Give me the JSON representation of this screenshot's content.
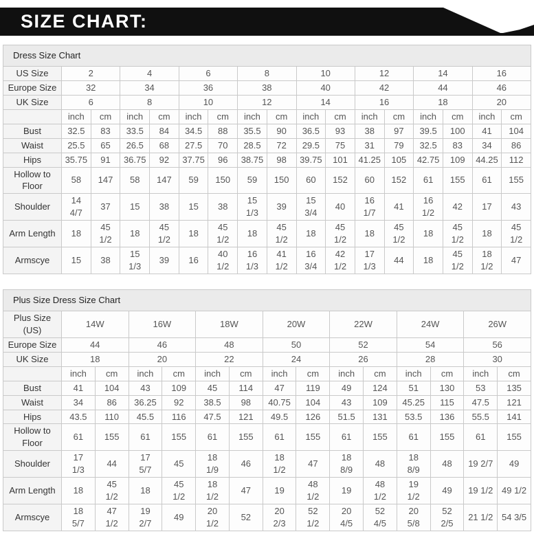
{
  "banner": {
    "title": "SIZE CHART:"
  },
  "colors": {
    "banner_bg": "#101010",
    "banner_text": "#ffffff",
    "table_border": "#c9c9c9",
    "caption_bg": "#ebebeb",
    "label_bg": "#f4f4f4"
  },
  "tables": [
    {
      "name": "dress-size-chart",
      "caption": "Dress Size Chart",
      "units": [
        "inch",
        "cm"
      ],
      "size_rows": [
        {
          "label": "US Size",
          "values": [
            "2",
            "4",
            "6",
            "8",
            "10",
            "12",
            "14",
            "16"
          ]
        },
        {
          "label": "Europe Size",
          "values": [
            "32",
            "34",
            "36",
            "38",
            "40",
            "42",
            "44",
            "46"
          ]
        },
        {
          "label": "UK Size",
          "values": [
            "6",
            "8",
            "10",
            "12",
            "14",
            "16",
            "18",
            "20"
          ]
        }
      ],
      "measure_rows": [
        {
          "label": "Bust",
          "values": [
            "32.5",
            "83",
            "33.5",
            "84",
            "34.5",
            "88",
            "35.5",
            "90",
            "36.5",
            "93",
            "38",
            "97",
            "39.5",
            "100",
            "41",
            "104"
          ]
        },
        {
          "label": "Waist",
          "values": [
            "25.5",
            "65",
            "26.5",
            "68",
            "27.5",
            "70",
            "28.5",
            "72",
            "29.5",
            "75",
            "31",
            "79",
            "32.5",
            "83",
            "34",
            "86"
          ]
        },
        {
          "label": "Hips",
          "values": [
            "35.75",
            "91",
            "36.75",
            "92",
            "37.75",
            "96",
            "38.75",
            "98",
            "39.75",
            "101",
            "41.25",
            "105",
            "42.75",
            "109",
            "44.25",
            "112"
          ]
        },
        {
          "label": "Hollow to Floor",
          "values": [
            "58",
            "147",
            "58",
            "147",
            "59",
            "150",
            "59",
            "150",
            "60",
            "152",
            "60",
            "152",
            "61",
            "155",
            "61",
            "155"
          ]
        },
        {
          "label": "Shoulder",
          "values": [
            "14\n4/7",
            "37",
            "15",
            "38",
            "15",
            "38",
            "15\n1/3",
            "39",
            "15\n3/4",
            "40",
            "16\n1/7",
            "41",
            "16\n1/2",
            "42",
            "17",
            "43"
          ]
        },
        {
          "label": "Arm Length",
          "values": [
            "18",
            "45\n1/2",
            "18",
            "45\n1/2",
            "18",
            "45\n1/2",
            "18",
            "45\n1/2",
            "18",
            "45\n1/2",
            "18",
            "45\n1/2",
            "18",
            "45\n1/2",
            "18",
            "45\n1/2"
          ]
        },
        {
          "label": "Armscye",
          "values": [
            "15",
            "38",
            "15\n1/3",
            "39",
            "16",
            "40\n1/2",
            "16\n1/3",
            "41\n1/2",
            "16\n3/4",
            "42\n1/2",
            "17\n1/3",
            "44",
            "18",
            "45\n1/2",
            "18\n1/2",
            "47"
          ]
        }
      ]
    },
    {
      "name": "plus-size-dress-size-chart",
      "caption": "Plus Size Dress Size Chart",
      "units": [
        "inch",
        "cm"
      ],
      "size_rows": [
        {
          "label": "Plus Size (US)",
          "values": [
            "14W",
            "16W",
            "18W",
            "20W",
            "22W",
            "24W",
            "26W"
          ]
        },
        {
          "label": "Europe Size",
          "values": [
            "44",
            "46",
            "48",
            "50",
            "52",
            "54",
            "56"
          ]
        },
        {
          "label": "UK Size",
          "values": [
            "18",
            "20",
            "22",
            "24",
            "26",
            "28",
            "30"
          ]
        }
      ],
      "measure_rows": [
        {
          "label": "Bust",
          "values": [
            "41",
            "104",
            "43",
            "109",
            "45",
            "114",
            "47",
            "119",
            "49",
            "124",
            "51",
            "130",
            "53",
            "135"
          ]
        },
        {
          "label": "Waist",
          "values": [
            "34",
            "86",
            "36.25",
            "92",
            "38.5",
            "98",
            "40.75",
            "104",
            "43",
            "109",
            "45.25",
            "115",
            "47.5",
            "121"
          ]
        },
        {
          "label": "Hips",
          "values": [
            "43.5",
            "110",
            "45.5",
            "116",
            "47.5",
            "121",
            "49.5",
            "126",
            "51.5",
            "131",
            "53.5",
            "136",
            "55.5",
            "141"
          ]
        },
        {
          "label": "Hollow to Floor",
          "values": [
            "61",
            "155",
            "61",
            "155",
            "61",
            "155",
            "61",
            "155",
            "61",
            "155",
            "61",
            "155",
            "61",
            "155"
          ]
        },
        {
          "label": "Shoulder",
          "values": [
            "17\n1/3",
            "44",
            "17\n5/7",
            "45",
            "18\n1/9",
            "46",
            "18\n1/2",
            "47",
            "18\n8/9",
            "48",
            "18\n8/9",
            "48",
            "19 2/7",
            "49"
          ]
        },
        {
          "label": "Arm Length",
          "values": [
            "18",
            "45\n1/2",
            "18",
            "45\n1/2",
            "18\n1/2",
            "47",
            "19",
            "48\n1/2",
            "19",
            "48\n1/2",
            "19\n1/2",
            "49",
            "19 1/2",
            "49 1/2"
          ]
        },
        {
          "label": "Armscye",
          "values": [
            "18\n5/7",
            "47\n1/2",
            "19\n2/7",
            "49",
            "20\n1/2",
            "52",
            "20\n2/3",
            "52\n1/2",
            "20\n4/5",
            "52\n4/5",
            "20\n5/8",
            "52\n2/5",
            "21 1/2",
            "54 3/5"
          ]
        }
      ]
    }
  ]
}
